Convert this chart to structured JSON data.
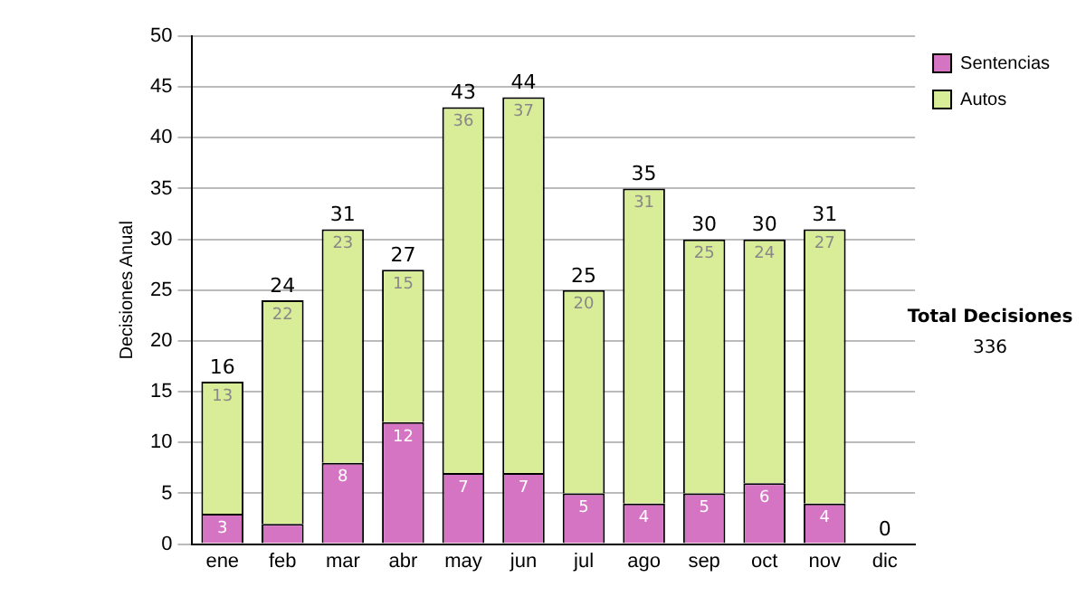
{
  "chart_data": {
    "type": "bar",
    "stacked": true,
    "ylabel": "Decisiones Anual",
    "categories": [
      "ene",
      "feb",
      "mar",
      "abr",
      "may",
      "jun",
      "jul",
      "ago",
      "sep",
      "oct",
      "nov",
      "dic"
    ],
    "series": [
      {
        "name": "Sentencias",
        "color": "#d674c4",
        "values": [
          3,
          2,
          8,
          12,
          7,
          7,
          5,
          4,
          5,
          6,
          4,
          0
        ],
        "value_labels": [
          "3",
          null,
          "8",
          "12",
          "7",
          "7",
          "5",
          "4",
          "5",
          "6",
          "4",
          null
        ]
      },
      {
        "name": "Autos",
        "color": "#d9ed99",
        "values": [
          13,
          22,
          23,
          15,
          36,
          37,
          20,
          31,
          25,
          24,
          27,
          0
        ],
        "value_labels": [
          "13",
          "22",
          "23",
          "15",
          "36",
          "37",
          "20",
          "31",
          "25",
          "24",
          "27",
          null
        ]
      }
    ],
    "totals": [
      "16",
      "24",
      "31",
      "27",
      "43",
      "44",
      "25",
      "35",
      "30",
      "30",
      "31",
      "0"
    ],
    "ylim": [
      0,
      50
    ],
    "yticks": [
      0,
      5,
      10,
      15,
      20,
      25,
      30,
      35,
      40,
      45,
      50
    ],
    "grid": "y",
    "legend": "right",
    "annotations": [
      "Total Decisiones",
      "336"
    ]
  }
}
